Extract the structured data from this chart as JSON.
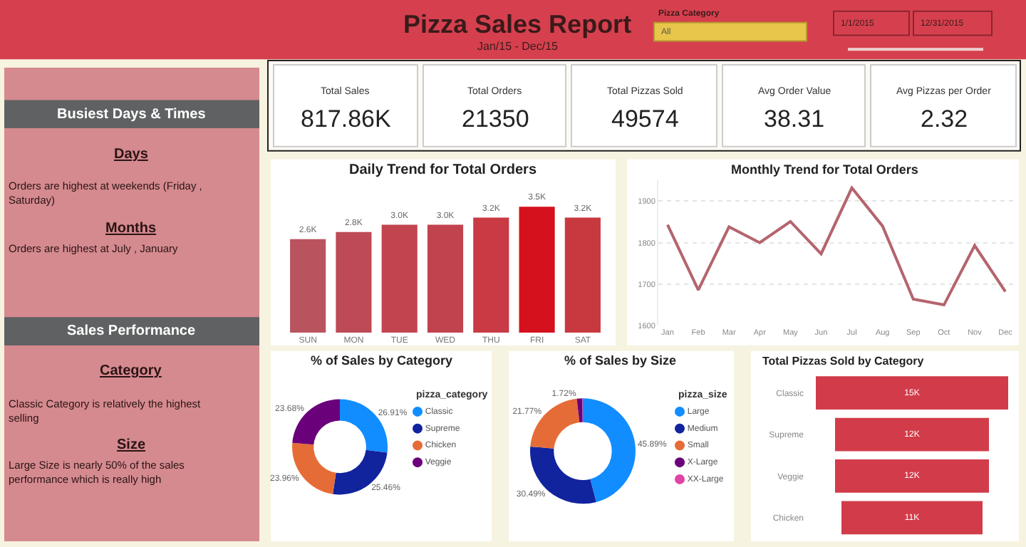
{
  "chart_data": [
    {
      "type": "other",
      "title": "Pizza Sales Report",
      "subtitle": "Jan/15 - Dec/15",
      "annotations": [
        "Pizza Category",
        "All",
        "1/1/2015",
        "12/31/2015"
      ]
    },
    {
      "type": "other",
      "annotations": [
        "Busiest Days & Times",
        "Days",
        "Orders are highest at weekends (Friday , Saturday)",
        "Months",
        "Orders are highest at July , January",
        "Sales Performance",
        "Category",
        "Classic Category is relatively the highest selling",
        "Size",
        "Large Size is nearly 50% of the sales performance which is really high"
      ]
    },
    {
      "type": "other",
      "annotations": [
        "Total Sales",
        "817.86K",
        "Total Orders",
        "21350",
        "Total Pizzas Sold",
        "49574",
        "Avg Order Value",
        "38.31",
        "Avg Pizzas per Order",
        "2.32"
      ]
    },
    {
      "type": "bar",
      "title": "Daily Trend for Total Orders",
      "categories": [
        "SUN",
        "MON",
        "TUE",
        "WED",
        "THU",
        "FRI",
        "SAT"
      ],
      "values": [
        2600,
        2800,
        3000,
        3000,
        3200,
        3500,
        3200
      ],
      "value_labels": [
        "2.6K",
        "2.8K",
        "3.0K",
        "3.0K",
        "3.2K",
        "3.5K",
        "3.2K"
      ],
      "colors": [
        "#b9545e",
        "#bd4a54",
        "#c2444e",
        "#c1434d",
        "#c93a44",
        "#d4111c",
        "#c8383f"
      ]
    },
    {
      "type": "line",
      "title": "Monthly Trend for Total Orders",
      "categories": [
        "Jan",
        "Feb",
        "Mar",
        "Apr",
        "May",
        "Jun",
        "Jul",
        "Aug",
        "Sep",
        "Oct",
        "Nov",
        "Dec"
      ],
      "values": [
        1843,
        1686,
        1838,
        1800,
        1851,
        1773,
        1932,
        1840,
        1664,
        1650,
        1793,
        1682
      ],
      "color": "#b4646e",
      "ylim": [
        1600,
        1950
      ],
      "yticks": [
        1600,
        1700,
        1800,
        1900
      ],
      "grid": "y",
      "marker": "none"
    },
    {
      "type": "donut",
      "title": "% of Sales by Category",
      "legend_title": "pizza_category",
      "legend": "right",
      "categories": [
        "Classic",
        "Supreme",
        "Chicken",
        "Veggie"
      ],
      "values": [
        26.91,
        25.46,
        23.96,
        23.68
      ],
      "value_labels": [
        "26.91%",
        "25.46%",
        "23.96%",
        "23.68%"
      ],
      "colors": [
        "#118dff",
        "#12239e",
        "#e66c37",
        "#6b007b"
      ]
    },
    {
      "type": "donut",
      "title": "% of Sales by Size",
      "legend_title": "pizza_size",
      "legend": "right",
      "categories": [
        "Large",
        "Medium",
        "Small",
        "X-Large",
        "XX-Large"
      ],
      "values": [
        45.89,
        30.49,
        21.77,
        1.72,
        0.12
      ],
      "value_labels": [
        "45.89%",
        "30.49%",
        "21.77%",
        "1.72%",
        null
      ],
      "colors": [
        "#118dff",
        "#12239e",
        "#e66c37",
        "#6b007b",
        "#e044a7"
      ]
    },
    {
      "type": "other",
      "title": "Total Pizzas Sold by Category",
      "categories": [
        "Classic",
        "Supreme",
        "Veggie",
        "Chicken"
      ],
      "values": [
        15000,
        12000,
        12000,
        11000
      ],
      "value_labels": [
        "15K",
        "12K",
        "12K",
        "11K"
      ],
      "color": "#d23c4a"
    }
  ]
}
